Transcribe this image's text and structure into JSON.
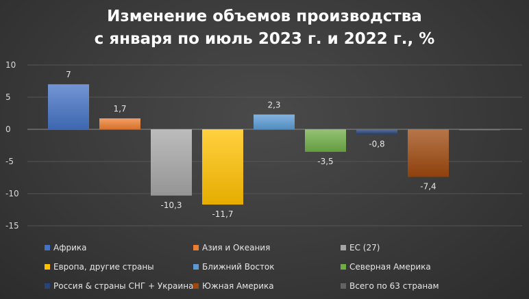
{
  "chart_data": {
    "type": "bar",
    "title_lines": [
      "Изменение объемов производства",
      "с января по июль 2023 г. и 2022 г., %"
    ],
    "ylim": [
      -15,
      10
    ],
    "yticks": [
      10,
      5,
      0,
      -5,
      -10,
      -15
    ],
    "grid": true,
    "legend_position": "bottom",
    "series": [
      {
        "name": "Африка",
        "value": 7,
        "label": "7",
        "color": "#4472C4"
      },
      {
        "name": "Азия и Океания",
        "value": 1.7,
        "label": "1,7",
        "color": "#ED7D31"
      },
      {
        "name": "ЕС (27)",
        "value": -10.3,
        "label": "-10,3",
        "color": "#A5A5A5"
      },
      {
        "name": "Европа, другие страны",
        "value": -11.7,
        "label": "-11,7",
        "color": "#FFC000"
      },
      {
        "name": "Ближний Восток",
        "value": 2.3,
        "label": "2,3",
        "color": "#5B9BD5"
      },
      {
        "name": "Северная Америка",
        "value": -3.5,
        "label": "-3,5",
        "color": "#70AD47"
      },
      {
        "name": "Россия & страны СНГ + Украина",
        "value": -0.8,
        "label": "-0,8",
        "color": "#264478"
      },
      {
        "name": "Южная Америка",
        "value": -7.4,
        "label": "-7,4",
        "color": "#9E480E"
      },
      {
        "name": "Всего по 63 странам",
        "value": -0.1,
        "label": "",
        "color": "#636363"
      }
    ]
  }
}
